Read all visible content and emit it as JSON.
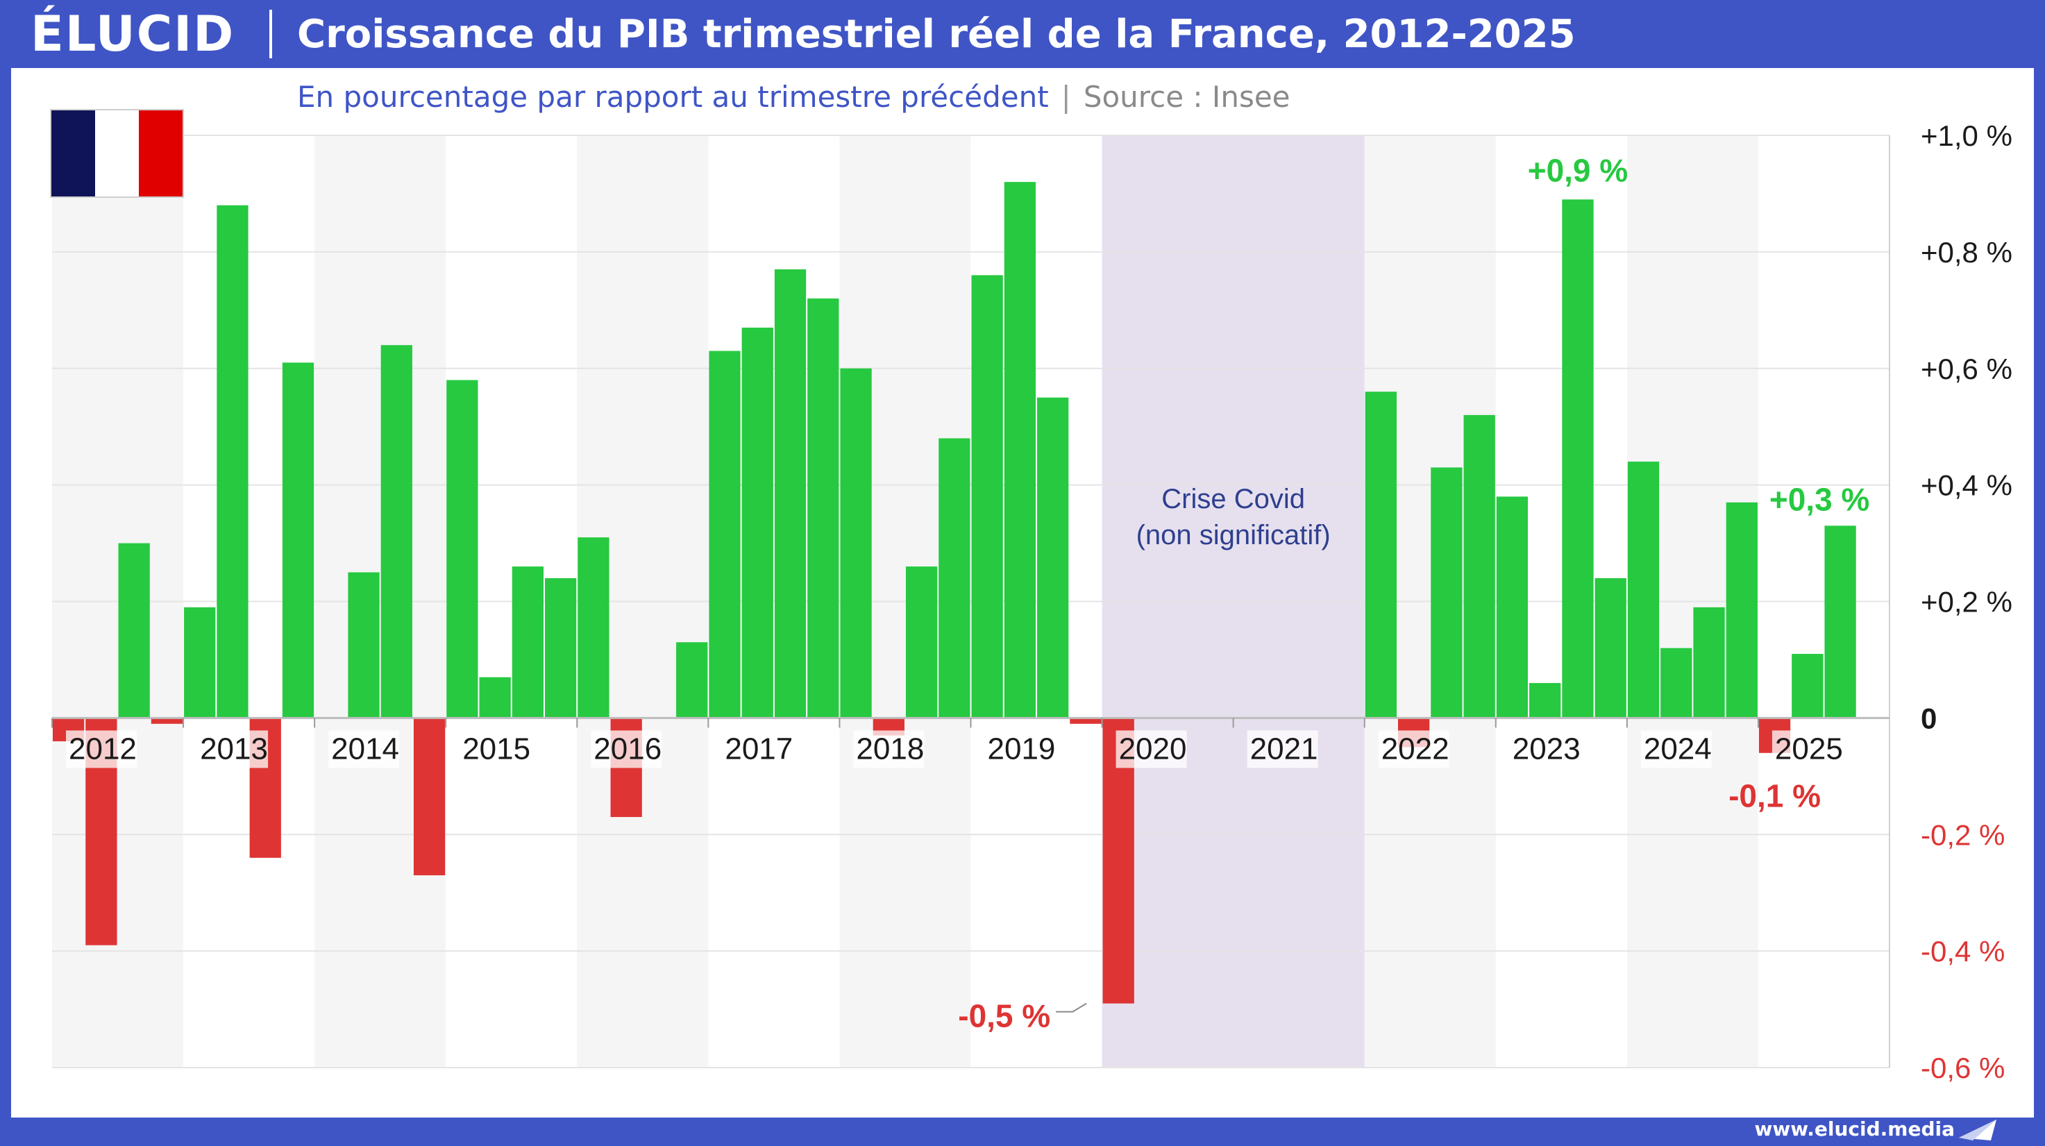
{
  "header": {
    "logo": "ÉLUCID",
    "title": "Croissance du PIB trimestriel réel de la France, 2012-2025"
  },
  "subtitle": {
    "main": "En pourcentage par rapport au trimestre précédent",
    "separator": "|",
    "source": "Source : Insee"
  },
  "footer": {
    "url": "www.elucid.media"
  },
  "colors": {
    "positive": "#26c940",
    "negative": "#de3434",
    "brand": "#3f55c6",
    "covid_band": "#e6e0ee",
    "alt_band": "#f5f5f5",
    "flag_blue": "#0f1458",
    "flag_white": "#ffffff",
    "flag_red": "#e00000"
  },
  "chart_data": {
    "type": "bar",
    "title": "Croissance du PIB trimestriel réel de la France, 2012-2025",
    "subtitle": "En pourcentage par rapport au trimestre précédent",
    "ylim": [
      -0.6,
      1.0
    ],
    "y_ticks": [
      {
        "value": 1.0,
        "label": "+1,0 %"
      },
      {
        "value": 0.8,
        "label": "+0,8 %"
      },
      {
        "value": 0.6,
        "label": "+0,6 %"
      },
      {
        "value": 0.4,
        "label": "+0,4 %"
      },
      {
        "value": 0.2,
        "label": "+0,2 %"
      },
      {
        "value": 0.0,
        "label": "0"
      },
      {
        "value": -0.2,
        "label": "-0,2 %"
      },
      {
        "value": -0.4,
        "label": "-0,4 %"
      },
      {
        "value": -0.6,
        "label": "-0,6 %"
      }
    ],
    "years": [
      "2012",
      "2013",
      "2014",
      "2015",
      "2016",
      "2017",
      "2018",
      "2019",
      "2020",
      "2021",
      "2022",
      "2023",
      "2024",
      "2025"
    ],
    "quarters_per_year": 4,
    "values": [
      -0.04,
      -0.39,
      0.3,
      -0.01,
      0.19,
      0.88,
      -0.24,
      0.61,
      0.0,
      0.25,
      0.64,
      -0.27,
      0.58,
      0.07,
      0.26,
      0.24,
      0.31,
      -0.17,
      0.0,
      0.13,
      0.63,
      0.67,
      0.77,
      0.72,
      0.6,
      -0.03,
      0.26,
      0.48,
      0.76,
      0.92,
      0.55,
      -0.01,
      -0.49,
      null,
      null,
      null,
      null,
      null,
      null,
      null,
      0.56,
      -0.05,
      0.43,
      0.52,
      0.38,
      0.06,
      0.89,
      0.24,
      0.44,
      0.12,
      0.19,
      0.37,
      -0.06,
      0.11,
      0.33
    ],
    "grid": true,
    "covid_band": {
      "from_year": "2020",
      "to_year": "2021",
      "label_line1": "Crise Covid",
      "label_line2": "(non significatif)"
    },
    "annotations": [
      {
        "index": 46,
        "text": "+0,9 %",
        "color": "positive"
      },
      {
        "index": 54,
        "text": "+0,3 %",
        "color": "positive"
      },
      {
        "index": 52,
        "text": "-0,1 %",
        "color": "negative"
      },
      {
        "index": 32,
        "text": "-0,5 %",
        "color": "negative"
      }
    ]
  }
}
